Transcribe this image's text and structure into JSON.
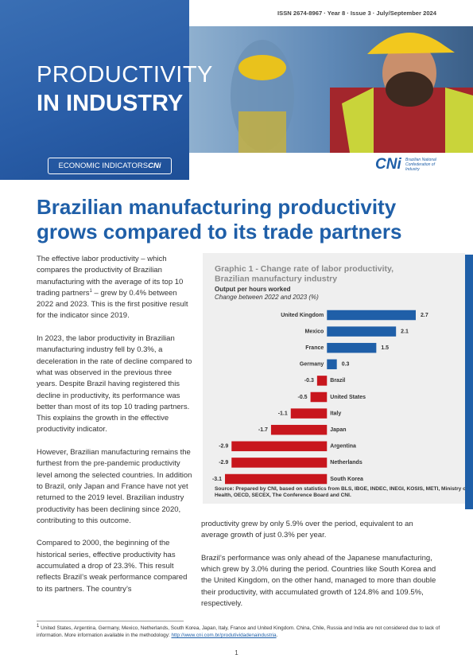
{
  "header": {
    "issn": "ISSN 2674-8967 · Year 8 · Issue 3 · July/September 2024",
    "title_line1": "PRODUCTIVITY",
    "title_line2": "IN INDUSTRY",
    "badge": "ECONOMIC INDICATORS",
    "badge_brand": "CNi",
    "logo": "CNi",
    "logo_text": "Brazilian National Confederation of Industry"
  },
  "headline": "Brazilian manufacturing productivity grows compared to its trade partners",
  "left_column": {
    "p1_before": "The effective labor productivity – which compares the productivity of Brazilian manufacturing with the average of its top 10 trading partners",
    "p1_note": "1",
    "p1_after": " – grew by 0.4% between 2022 and 2023. This is the first positive result for the indicator since 2019.",
    "paragraphs": [
      "In 2023, the labor productivity in Brazilian manufacturing industry fell by 0.3%, a deceleration in the rate of decline compared to what was observed in the previous three years. Despite Brazil having registered this decline in productivity, its performance was better than most of its top 10 trading partners. This explains the growth in the effective productivity indicator.",
      "However, Brazilian manufacturing remains the furthest from the pre-pandemic productivity level among the selected countries. In addition to Brazil, only Japan and France have not yet returned to the 2019 level. Brazilian industry productivity has been declining since 2020, contributing to this outcome.",
      "Compared to 2000, the beginning of the historical series, effective productivity has accumulated a drop of 23.3%. This result reflects Brazil’s weak performance compared to its partners. The country’s"
    ]
  },
  "chart_data": {
    "type": "hbar",
    "title": "Graphic 1 - Change rate of labor productivity, Brazilian manufactury industry",
    "subtitle": "Output per hours worked",
    "unit_note": "Change between 2022 and 2023 (%)",
    "categories": [
      "United Kingdom",
      "Mexico",
      "France",
      "Germany",
      "Brazil",
      "United States",
      "Italy",
      "Japan",
      "Argentina",
      "Netherlands",
      "South Korea"
    ],
    "values": [
      2.7,
      2.1,
      1.5,
      0.3,
      -0.3,
      -0.5,
      -1.1,
      -1.7,
      -2.9,
      -2.9,
      -3.1
    ],
    "positive_color": "#1f5fa8",
    "negative_color": "#c8161d",
    "source": "Source: Prepared by CNI, based on statistics from BLS, IBGE, INDEC, INEGI, KOSIS, METI, Ministry of Health, OECD, SECEX, The Conference Board and CNI."
  },
  "right_column": [
    "productivity grew by only 5.9% over the period, equivalent to an average growth of just 0.3% per year.",
    "Brazil’s performance was only ahead of the Japanese manufacturing, which grew by 3.0% during the period. Countries like South Korea and the United Kingdom, on the other hand, managed to more than double their productivity, with accumulated growth of 124.8% and 109.5%, respectively."
  ],
  "footnote": {
    "marker": "1",
    "text": "United States, Argentina, Germany, Mexico, Netherlands, South Korea, Japan, Italy, France and United Kingdom. China, Chile, Russia and India are not considered due to lack of information. More information available in the methodology: ",
    "link": "http://www.cni.com.br/produtividadenaindustria",
    "end": "."
  },
  "page_number": "1"
}
